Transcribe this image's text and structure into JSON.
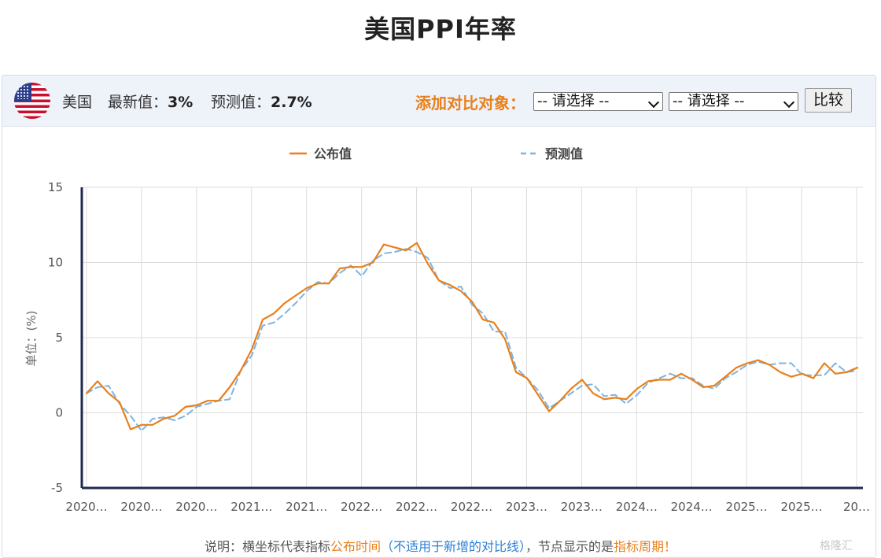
{
  "page": {
    "title": "美国PPI年率"
  },
  "header": {
    "flag_icon": "us-flag-icon",
    "country": "美国",
    "latest_label": "最新值：",
    "latest_value": "3%",
    "forecast_label": "预测值：",
    "forecast_value": "2.7%",
    "compare_label": "添加对比对象：",
    "select1": {
      "selected": "-- 请选择 --"
    },
    "select2": {
      "selected": "-- 请选择 --"
    },
    "compare_button": "比较"
  },
  "footnote": {
    "part1": "说明：横坐标代表指标",
    "part2": "公布时间",
    "part3": "（不适用于新增的对比线）",
    "part4": "，节点显示的是",
    "part5": "指标周期",
    "part6": "！"
  },
  "watermark": "格隆汇",
  "chart_data": {
    "type": "line",
    "legend": {
      "position": "top-center",
      "items": [
        "公布值",
        "预测值"
      ]
    },
    "ylabel": "单位：(%)",
    "ylim": [
      -5,
      15
    ],
    "yticks": [
      15,
      10,
      5,
      0,
      -5
    ],
    "grid": true,
    "xtick_labels": [
      "2020…",
      "2020…",
      "2020…",
      "2021…",
      "2021…",
      "2022…",
      "2022…",
      "2022…",
      "2023…",
      "2023…",
      "2024…",
      "2024…",
      "2025…",
      "2025…",
      "20…"
    ],
    "series": [
      {
        "name": "公布值",
        "color": "#e8801c",
        "dash": "solid",
        "values": [
          1.3,
          2.1,
          1.3,
          0.7,
          -1.1,
          -0.8,
          -0.8,
          -0.4,
          -0.2,
          0.4,
          0.5,
          0.8,
          0.8,
          1.7,
          2.8,
          4.2,
          6.2,
          6.6,
          7.3,
          7.8,
          8.3,
          8.6,
          8.6,
          9.6,
          9.7,
          9.7,
          10.0,
          11.2,
          11.0,
          10.8,
          11.3,
          9.9,
          8.8,
          8.5,
          8.1,
          7.4,
          6.2,
          6.0,
          4.9,
          2.7,
          2.3,
          1.2,
          0.1,
          0.8,
          1.6,
          2.2,
          1.3,
          0.9,
          1.0,
          0.9,
          1.6,
          2.1,
          2.2,
          2.2,
          2.6,
          2.2,
          1.7,
          1.8,
          2.4,
          3.0,
          3.3,
          3.5,
          3.2,
          2.7,
          2.4,
          2.6,
          2.3,
          3.3,
          2.6,
          2.7,
          3.0
        ]
      },
      {
        "name": "预测值",
        "color": "#7fb3e3",
        "dash": "dashed",
        "values": [
          1.3,
          1.7,
          1.8,
          0.6,
          -0.2,
          -1.2,
          -0.4,
          -0.3,
          -0.5,
          -0.2,
          0.4,
          0.6,
          0.8,
          0.9,
          2.8,
          3.8,
          5.8,
          6.0,
          6.6,
          7.3,
          8.1,
          8.7,
          8.6,
          9.3,
          9.8,
          9.1,
          10.1,
          10.6,
          10.7,
          10.9,
          10.7,
          10.3,
          8.8,
          8.3,
          8.4,
          7.2,
          6.6,
          5.4,
          5.4,
          3.0,
          2.3,
          1.5,
          0.3,
          0.8,
          1.3,
          1.8,
          1.9,
          1.1,
          1.2,
          0.6,
          1.2,
          2.0,
          2.3,
          2.6,
          2.3,
          2.3,
          1.8,
          1.6,
          2.3,
          2.7,
          3.2,
          3.4,
          3.2,
          3.3,
          3.3,
          2.5,
          2.5,
          2.5,
          3.3,
          2.7,
          2.8
        ]
      }
    ]
  }
}
